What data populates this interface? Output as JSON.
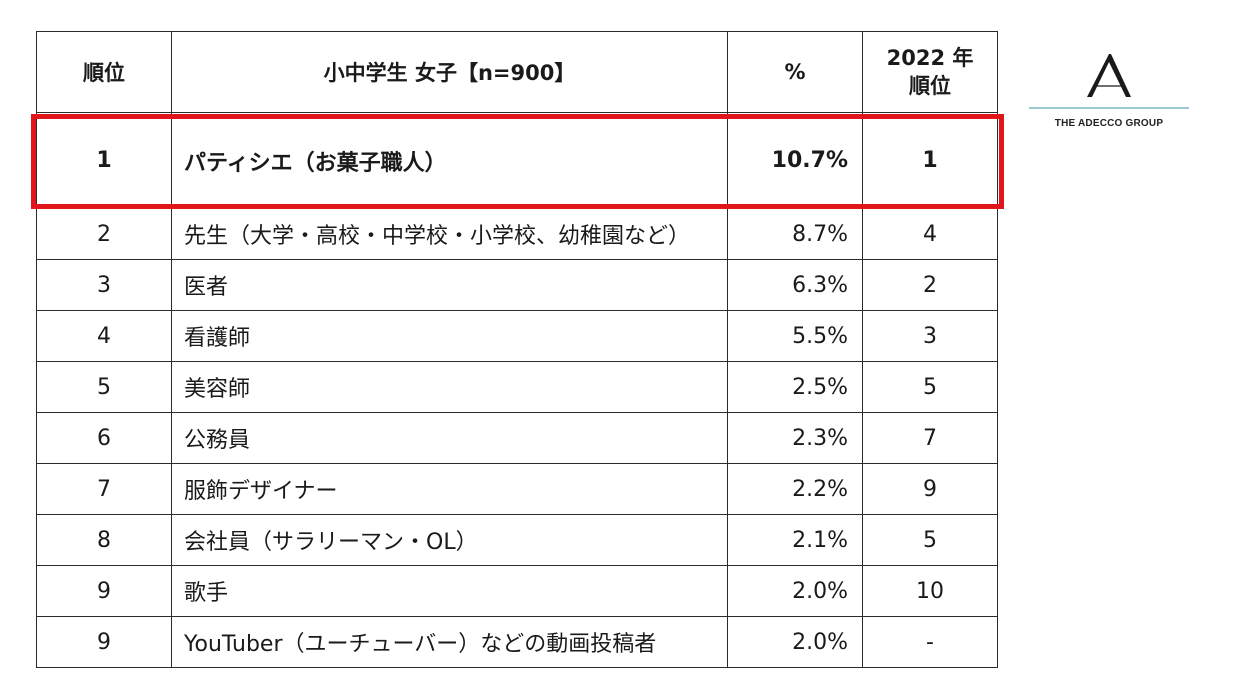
{
  "table": {
    "headers": {
      "rank": "順位",
      "name": "小中学生 女子【n=900】",
      "percent": "%",
      "prev_line1": "2022 年",
      "prev_line2": "順位"
    },
    "rows": [
      {
        "rank": "1",
        "name": "パティシエ（お菓子職人）",
        "percent": "10.7%",
        "prev": "1"
      },
      {
        "rank": "2",
        "name": "先生（大学・高校・中学校・小学校、幼稚園など）",
        "percent": "8.7%",
        "prev": "4"
      },
      {
        "rank": "3",
        "name": "医者",
        "percent": "6.3%",
        "prev": "2"
      },
      {
        "rank": "4",
        "name": "看護師",
        "percent": "5.5%",
        "prev": "3"
      },
      {
        "rank": "5",
        "name": "美容師",
        "percent": "2.5%",
        "prev": "5"
      },
      {
        "rank": "6",
        "name": "公務員",
        "percent": "2.3%",
        "prev": "7"
      },
      {
        "rank": "7",
        "name": "服飾デザイナー",
        "percent": "2.2%",
        "prev": "9"
      },
      {
        "rank": "8",
        "name": "会社員（サラリーマン・OL）",
        "percent": "2.1%",
        "prev": "5"
      },
      {
        "rank": "9",
        "name": "歌手",
        "percent": "2.0%",
        "prev": "10"
      },
      {
        "rank": "9",
        "name": "YouTuber（ユーチューバー）などの動画投稿者",
        "percent": "2.0%",
        "prev": "-"
      }
    ]
  },
  "highlight_color": "#e0161b",
  "logo": {
    "text": "THE ADECCO GROUP",
    "line_color": "#7ab8c4"
  }
}
